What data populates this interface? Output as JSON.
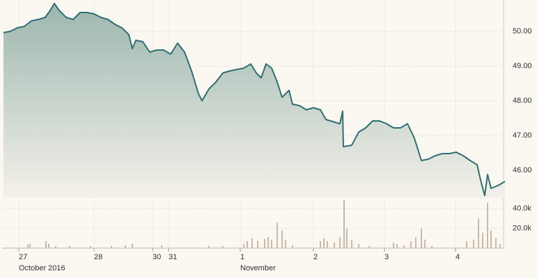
{
  "chart_data": {
    "type": "area",
    "x": [
      0.4,
      2.4,
      4.4,
      6.4,
      8.4,
      10.4,
      12.4,
      13.8,
      15,
      16.4,
      18.4,
      20.4,
      22.4,
      24.4,
      26.4,
      28.4,
      30.4,
      32.4,
      34.4,
      36.4,
      37.4,
      38.4,
      40.4,
      42.4,
      44.4,
      46.4,
      48.4,
      50.4,
      52.4,
      54.4,
      56.4,
      57.4,
      59.4,
      61.4,
      63.4,
      65.4,
      67.4,
      69.4,
      71.4,
      73,
      74.4,
      75.8,
      77.4,
      79,
      80.4,
      82.4,
      83.4,
      85.4,
      87.4,
      89.4,
      91.4,
      93,
      95,
      97,
      97.8,
      98,
      100.4,
      102.4,
      104.4,
      106.4,
      108.4,
      110.4,
      112.4,
      114.4,
      116.4,
      118.4,
      120.4,
      122.4,
      124.4,
      126.4,
      128.4,
      130.4,
      132.4,
      134.4,
      136.4,
      137.4,
      138.6,
      139.4,
      140.4,
      142.4,
      144.4
    ],
    "values": [
      49.96,
      50.0,
      50.1,
      50.14,
      50.3,
      50.34,
      50.4,
      50.6,
      50.8,
      50.6,
      50.4,
      50.34,
      50.54,
      50.54,
      50.5,
      50.4,
      50.34,
      50.2,
      50.1,
      49.9,
      49.5,
      49.74,
      49.7,
      49.4,
      49.46,
      49.46,
      49.34,
      49.66,
      49.4,
      48.86,
      48.2,
      48.0,
      48.34,
      48.54,
      48.8,
      48.86,
      48.9,
      48.94,
      49.06,
      48.8,
      48.66,
      49.06,
      48.94,
      48.54,
      48.1,
      48.3,
      47.9,
      47.86,
      47.74,
      47.8,
      47.74,
      47.46,
      47.4,
      47.34,
      47.7,
      46.68,
      46.72,
      47.1,
      47.22,
      47.42,
      47.42,
      47.34,
      47.22,
      47.22,
      47.34,
      46.92,
      46.28,
      46.32,
      46.42,
      46.48,
      46.48,
      46.52,
      46.42,
      46.28,
      46.16,
      45.72,
      45.27,
      45.88,
      45.48,
      45.56,
      45.68
    ],
    "color": "#2f6f73",
    "xlim": [
      0,
      145
    ],
    "ylim": [
      45.2,
      50.9
    ],
    "xticks": [
      {
        "value": 4.8,
        "label": "27"
      },
      {
        "value": 26.4,
        "label": "28"
      },
      {
        "value": 43.2,
        "label": "30"
      },
      {
        "value": 47.8,
        "label": "31"
      },
      {
        "value": 68.4,
        "label": "1"
      },
      {
        "value": 89.4,
        "label": "2"
      },
      {
        "value": 109.8,
        "label": "3"
      },
      {
        "value": 130.2,
        "label": "4"
      }
    ],
    "x_sublabels": [
      {
        "value": 4.8,
        "label": "October 2016"
      },
      {
        "value": 68.4,
        "label": "November"
      }
    ],
    "yticks": [
      {
        "value": 46,
        "label": "46.00"
      },
      {
        "value": 47,
        "label": "47.00"
      },
      {
        "value": 48,
        "label": "48.00"
      },
      {
        "value": 49,
        "label": "49.00"
      },
      {
        "value": 50,
        "label": "50.00"
      }
    ],
    "grid": true,
    "volume": {
      "type": "bar",
      "color": "#c9b9a7",
      "x": [
        7.4,
        8,
        12.6,
        13.4,
        15.4,
        19.4,
        25.4,
        31.4,
        35.4,
        37.4,
        45.8,
        59.4,
        63.4,
        69.4,
        70.4,
        71.8,
        73.4,
        75.4,
        76.4,
        77.4,
        79,
        80.4,
        81.4,
        83.4,
        91.4,
        92.4,
        93.4,
        95.4,
        97,
        98.2,
        99,
        100.4,
        102.4,
        105.4,
        112.4,
        113.4,
        115.4,
        117.4,
        118.8,
        120.4,
        121.4,
        123.4,
        133.4,
        135.4,
        136.8,
        138,
        139.4,
        140.4,
        141.8,
        143
      ],
      "values": [
        3600,
        4300,
        7100,
        4300,
        2100,
        2100,
        2100,
        2100,
        2900,
        4300,
        2900,
        2100,
        2100,
        4300,
        7100,
        10000,
        7100,
        9300,
        11400,
        8600,
        25700,
        17900,
        8600,
        2900,
        7100,
        10000,
        7100,
        5700,
        11400,
        49000,
        20000,
        8600,
        4300,
        2100,
        5700,
        4300,
        2900,
        7100,
        11400,
        20000,
        8600,
        2100,
        7100,
        8600,
        30000,
        15700,
        46000,
        17900,
        10000,
        4300
      ],
      "ylim": [
        0,
        50000
      ],
      "yticks": [
        {
          "value": 20000,
          "label": "20.0k"
        },
        {
          "value": 40000,
          "label": "40.0k"
        }
      ]
    }
  }
}
